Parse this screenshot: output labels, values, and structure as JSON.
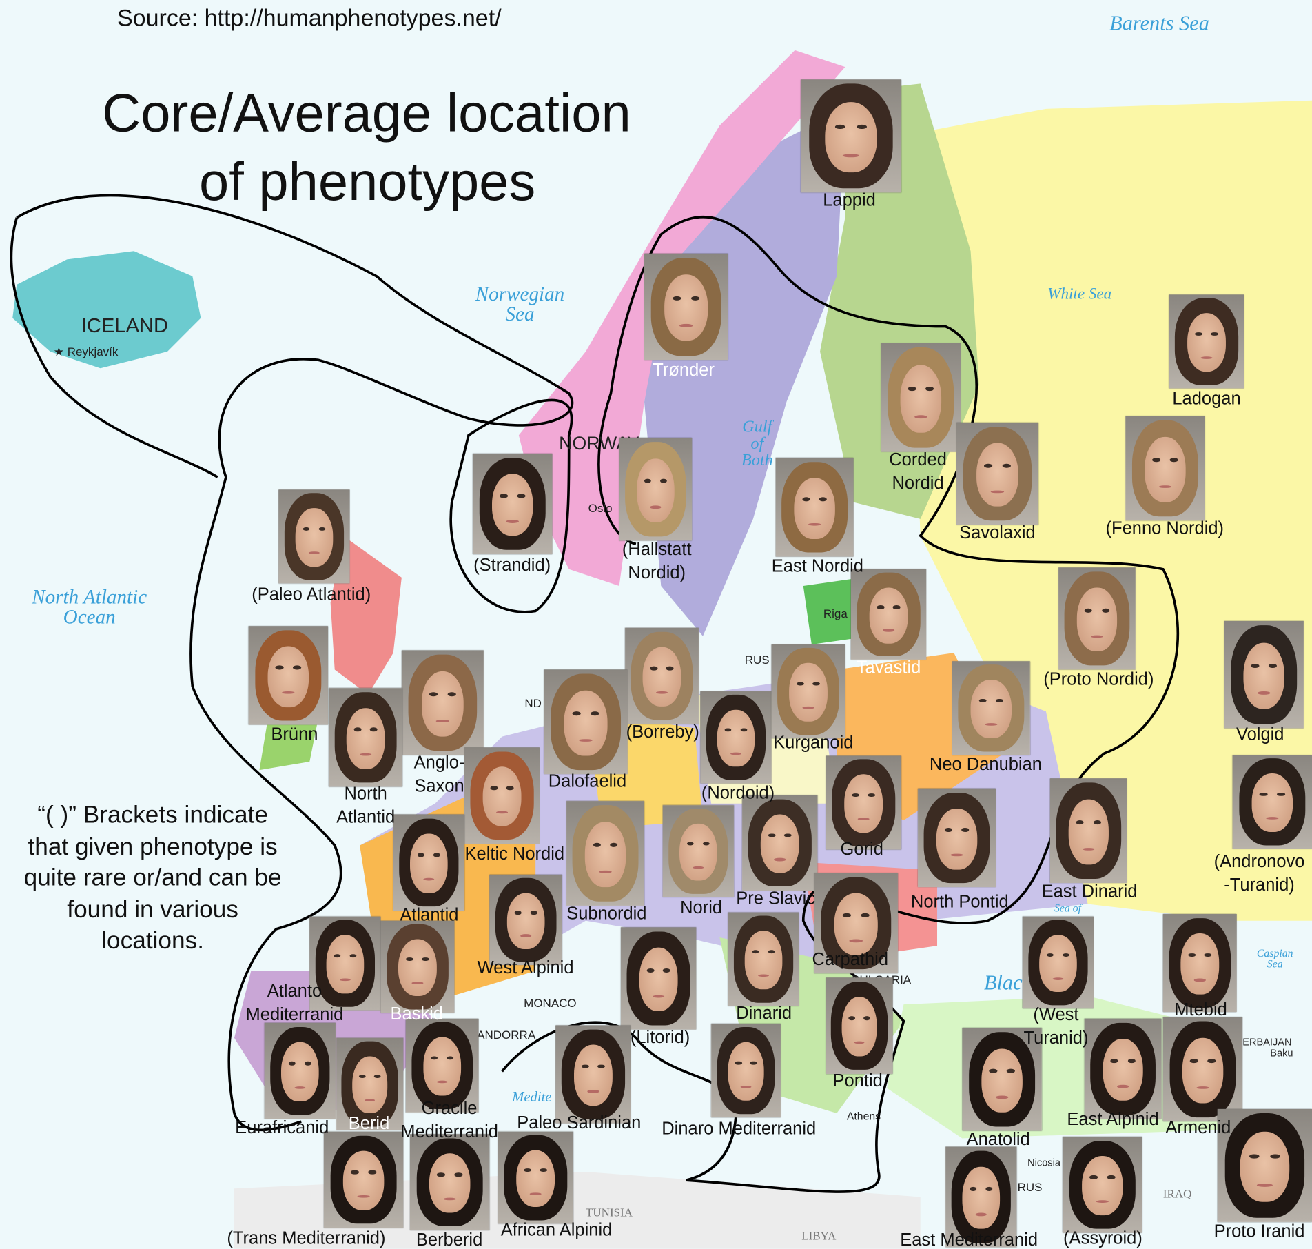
{
  "source": "Source: http://humanphenotypes.net/",
  "title_line1": "Core/Average location",
  "title_line2": "of phenotypes",
  "note": [
    "“( )” Brackets indicate",
    "that given phenotype is",
    "quite rare or/and can be",
    "found in various",
    "locations."
  ],
  "seas": {
    "barents": "Barents Sea",
    "norwegian": [
      "Norwegian",
      "Sea"
    ],
    "white": "White Sea",
    "north_atlantic": [
      "North Atlantic",
      "Ocean"
    ],
    "gulf": [
      "Gulf",
      "of",
      "Both"
    ],
    "caspian": [
      "Caspian",
      "Sea"
    ],
    "black": "Blac",
    "mediterranean": "Medite",
    "azov": "Sea of"
  },
  "places": {
    "iceland": "ICELAND",
    "reykjavik": "Reykjavík",
    "norway": "NORWAY",
    "oslo": "Oslo",
    "riga": "Riga",
    "rus": "RUS",
    "monaco": "MONACO",
    "andorra": "ANDORRA",
    "tunisia": "TUNISIA",
    "libya": "LIBYA",
    "iraq": "IRAQ",
    "athens": "Athens",
    "nicosia": "Nicosia",
    "bulgaria": "BULGARIA",
    "azerbaijan": "ERBAIJAN",
    "baku": "Baku",
    "nd": "ND",
    "cyprus": "RUS"
  },
  "colors": {
    "sea": "#eef9fb",
    "iceland": "#6ccbcf",
    "norway": "#f2a9d6",
    "sweden": "#b1acdc",
    "finland": "#b7d68f",
    "russia": "#fbf7a6",
    "label_sea": "#3aa0d8",
    "outline": "#000000"
  },
  "phenotypes": [
    {
      "name": "Lappid",
      "label": [
        "Lappid"
      ]
    },
    {
      "name": "Trønder",
      "label": [
        "Trønder"
      ],
      "white": true
    },
    {
      "name": "Strandid",
      "label": [
        "(Strandid)"
      ]
    },
    {
      "name": "Hallstatt Nordid",
      "label": [
        "(Hallstatt",
        "Nordid)"
      ]
    },
    {
      "name": "Corded Nordid",
      "label": [
        "Corded",
        "Nordid"
      ]
    },
    {
      "name": "Savolaxid",
      "label": [
        "Savolaxid"
      ]
    },
    {
      "name": "Fenno Nordid",
      "label": [
        "(Fenno Nordid)"
      ]
    },
    {
      "name": "Ladogan",
      "label": [
        "Ladogan"
      ]
    },
    {
      "name": "East Nordid",
      "label": [
        "East Nordid"
      ]
    },
    {
      "name": "Paleo Atlantid",
      "label": [
        "(Paleo Atlantid)"
      ]
    },
    {
      "name": "Tavastid",
      "label": [
        "Tavastid"
      ],
      "white": true
    },
    {
      "name": "Proto Nordid",
      "label": [
        "(Proto Nordid)"
      ]
    },
    {
      "name": "Volgid",
      "label": [
        "Volgid"
      ]
    },
    {
      "name": "Brünn",
      "label": [
        "Brünn"
      ]
    },
    {
      "name": "Anglo-Saxon",
      "label": [
        "Anglo-",
        "Saxon"
      ]
    },
    {
      "name": "North Atlantid",
      "label": [
        "North",
        "Atlantid"
      ]
    },
    {
      "name": "Borreby",
      "label": [
        "(Borreby)"
      ]
    },
    {
      "name": "Dalofaelid",
      "label": [
        "Dalofaelid"
      ]
    },
    {
      "name": "Nordoid",
      "label": [
        "(Nordoid)"
      ]
    },
    {
      "name": "Kurganoid",
      "label": [
        "Kurganoid"
      ]
    },
    {
      "name": "Neo Danubian",
      "label": [
        "Neo Danubian"
      ]
    },
    {
      "name": "Keltic Nordid",
      "label": [
        "Keltic Nordid"
      ]
    },
    {
      "name": "Subnordid",
      "label": [
        "Subnordid"
      ]
    },
    {
      "name": "Norid",
      "label": [
        "Norid"
      ]
    },
    {
      "name": "Pre Slavic",
      "label": [
        "Pre Slavic"
      ]
    },
    {
      "name": "Gorid",
      "label": [
        "Gorid"
      ]
    },
    {
      "name": "North Pontid",
      "label": [
        "North Pontid"
      ]
    },
    {
      "name": "East Dinarid",
      "label": [
        "East Dinarid"
      ]
    },
    {
      "name": "Andronovo-Turanid",
      "label": [
        "(Andronovo",
        "-Turanid)"
      ]
    },
    {
      "name": "Atlantid",
      "label": [
        "Atlantid"
      ]
    },
    {
      "name": "West Alpinid",
      "label": [
        "West Alpinid"
      ]
    },
    {
      "name": "Carpathid",
      "label": [
        "Carpathid"
      ]
    },
    {
      "name": "Atlanto Mediterranid",
      "label": [
        "Atlanto",
        "Mediterranid"
      ]
    },
    {
      "name": "Baskid",
      "label": [
        "Baskid"
      ],
      "white": true
    },
    {
      "name": "Litorid",
      "label": [
        "(Litorid)"
      ]
    },
    {
      "name": "Dinarid",
      "label": [
        "Dinarid"
      ]
    },
    {
      "name": "West Turanid",
      "label": [
        "(West",
        "Turanid)"
      ]
    },
    {
      "name": "Mtebid",
      "label": [
        "Mtebid"
      ]
    },
    {
      "name": "Pontid",
      "label": [
        "Pontid"
      ]
    },
    {
      "name": "Eurafricanid",
      "label": [
        "Eurafricanid"
      ]
    },
    {
      "name": "Berid",
      "label": [
        "Berid"
      ],
      "white": true
    },
    {
      "name": "Gracile Mediterranid",
      "label": [
        "Gracile",
        "Mediterranid"
      ]
    },
    {
      "name": "Paleo Sardinian",
      "label": [
        "Paleo Sardinian"
      ]
    },
    {
      "name": "Dinaro Mediterranid",
      "label": [
        "Dinaro Mediterranid"
      ]
    },
    {
      "name": "Anatolid",
      "label": [
        "Anatolid"
      ]
    },
    {
      "name": "East Alpinid",
      "label": [
        "East Alpinid"
      ]
    },
    {
      "name": "Armenid",
      "label": [
        "Armenid"
      ]
    },
    {
      "name": "Trans Mediterranid",
      "label": [
        "(Trans Mediterranid)"
      ]
    },
    {
      "name": "Berberid",
      "label": [
        "Berberid"
      ]
    },
    {
      "name": "African Alpinid",
      "label": [
        "African Alpinid"
      ]
    },
    {
      "name": "East Mediterranid",
      "label": [
        "East Mediterranid"
      ]
    },
    {
      "name": "Assyroid",
      "label": [
        "(Assyroid)"
      ]
    },
    {
      "name": "Proto Iranid",
      "label": [
        "Proto Iranid"
      ]
    }
  ]
}
